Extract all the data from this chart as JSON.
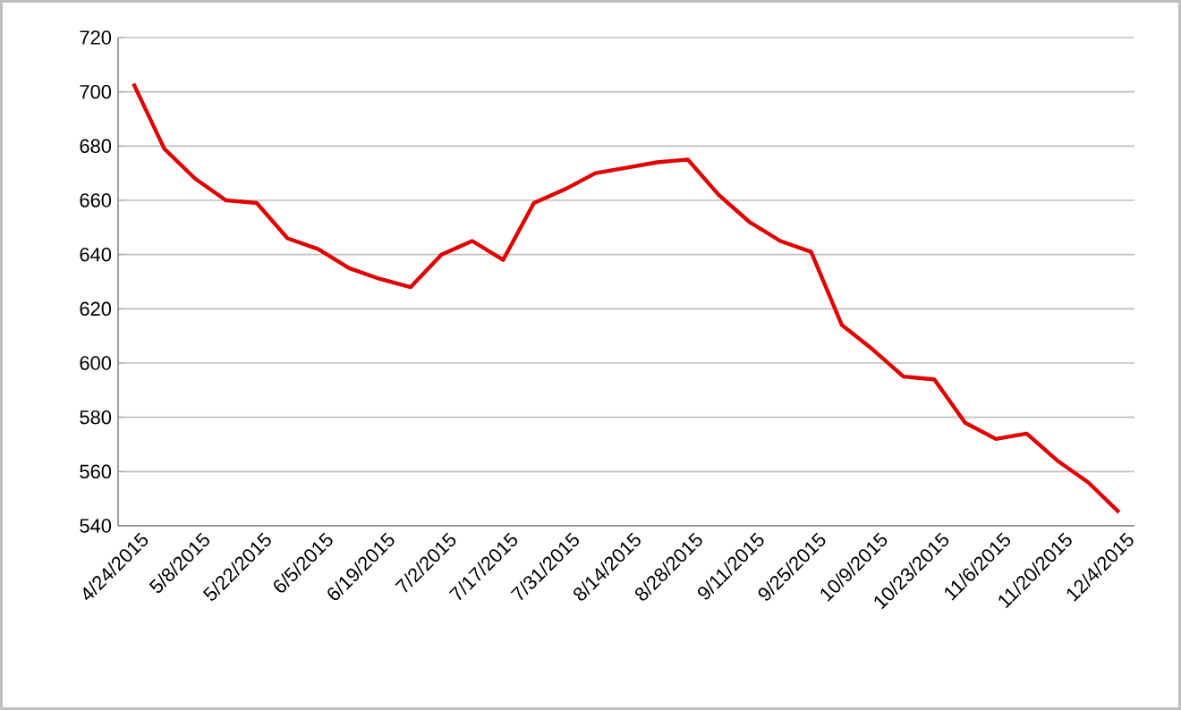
{
  "chart_data": {
    "type": "line",
    "categories": [
      "4/24/2015",
      null,
      "5/8/2015",
      null,
      "5/22/2015",
      null,
      "6/5/2015",
      null,
      "6/19/2015",
      null,
      "7/2/2015",
      null,
      "7/17/2015",
      null,
      "7/31/2015",
      null,
      "8/14/2015",
      null,
      "8/28/2015",
      null,
      "9/11/2015",
      null,
      "9/25/2015",
      null,
      "10/9/2015",
      null,
      "10/23/2015",
      null,
      "11/6/2015",
      null,
      "11/20/2015",
      null,
      "12/4/2015"
    ],
    "series": [
      {
        "color": "#e00000",
        "values": [
          703,
          679,
          668,
          660,
          659,
          646,
          642,
          635,
          631,
          628,
          640,
          645,
          638,
          659,
          664,
          670,
          672,
          674,
          675,
          662,
          652,
          645,
          641,
          614,
          605,
          595,
          594,
          578,
          572,
          574,
          564,
          556,
          545
        ]
      }
    ],
    "ylim": [
      540,
      720
    ],
    "yticks": [
      540,
      560,
      580,
      600,
      620,
      640,
      660,
      680,
      700,
      720
    ],
    "grid": "y",
    "legend": false,
    "marker": "none",
    "line_style": "solid"
  }
}
